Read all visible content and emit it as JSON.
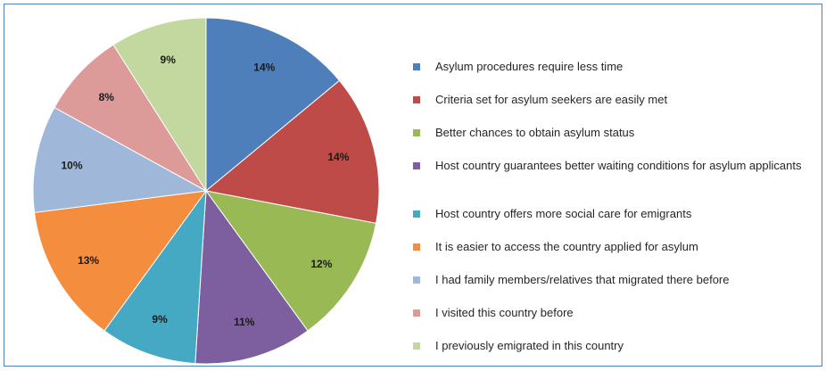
{
  "chart_data": {
    "type": "pie",
    "title": "",
    "legend_position": "right",
    "slices": [
      {
        "label": "Asylum procedures require less time",
        "value": 14,
        "display": "14%",
        "color": "#4f7fbb"
      },
      {
        "label": "Criteria set for asylum seekers are easily met",
        "value": 14,
        "display": "14%",
        "color": "#be4b48"
      },
      {
        "label": "Better chances to obtain asylum status",
        "value": 12,
        "display": "12%",
        "color": "#98b954"
      },
      {
        "label": "Host country guarantees better waiting  conditions for asylum applicants",
        "value": 11,
        "display": "11%",
        "color": "#7d5f9f"
      },
      {
        "label": "Host country offers more social care for emigrants",
        "value": 9,
        "display": "9%",
        "color": "#46a9c3"
      },
      {
        "label": "It is easier to access the country applied for asylum",
        "value": 13,
        "display": "13%",
        "color": "#f48d3e"
      },
      {
        "label": "I had family members/relatives that migrated there before",
        "value": 10,
        "display": "10%",
        "color": "#9fb8da"
      },
      {
        "label": "I visited this country before",
        "value": 8,
        "display": "8%",
        "color": "#dc9a99"
      },
      {
        "label": "I  previously emigrated in this country",
        "value": 9,
        "display": "9%",
        "color": "#c2d89f"
      }
    ]
  }
}
